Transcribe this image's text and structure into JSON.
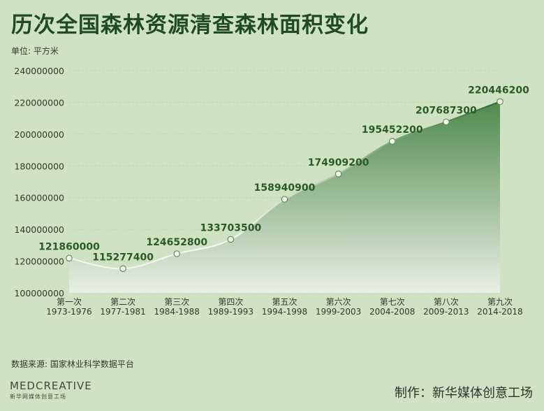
{
  "title": "历次全国森林资源清查森林面积变化",
  "unit_label": "单位: 平方米",
  "source": "数据来源: 国家林业科学数据平台",
  "credit": "制作：新华媒体创意工场",
  "logo": {
    "main": "MEDCREATIVE",
    "sub": "新华网媒体创意工场"
  },
  "colors": {
    "background": "#cfe3c4",
    "line": "#f2f5ee",
    "line_dark": "#2f6a32",
    "area_top": "#4f8a4c",
    "area_bottom": "#e9efe4",
    "label": "#2a5a26"
  },
  "chart_data": {
    "type": "area",
    "categories": [
      [
        "第一次",
        "1973-1976"
      ],
      [
        "第二次",
        "1977-1981"
      ],
      [
        "第三次",
        "1984-1988"
      ],
      [
        "第四次",
        "1989-1993"
      ],
      [
        "第五次",
        "1994-1998"
      ],
      [
        "第六次",
        "1999-2003"
      ],
      [
        "第七次",
        "2004-2008"
      ],
      [
        "第八次",
        "2009-2013"
      ],
      [
        "第九次",
        "2014-2018"
      ]
    ],
    "values": [
      121860000,
      115277400,
      124652800,
      133703500,
      158940900,
      174909200,
      195452200,
      207687300,
      220446200
    ],
    "value_labels": [
      "121860000",
      "115277400",
      "124652800",
      "133703500",
      "158940900",
      "174909200",
      "195452200",
      "207687300",
      "220446200"
    ],
    "ylim": [
      100000000,
      240000000
    ],
    "yticks": [
      100000000,
      120000000,
      140000000,
      160000000,
      180000000,
      200000000,
      220000000,
      240000000
    ],
    "ytick_labels": [
      "100000000",
      "120000000",
      "140000000",
      "160000000",
      "180000000",
      "200000000",
      "220000000",
      "240000000"
    ],
    "grid": true,
    "legend": "none"
  }
}
